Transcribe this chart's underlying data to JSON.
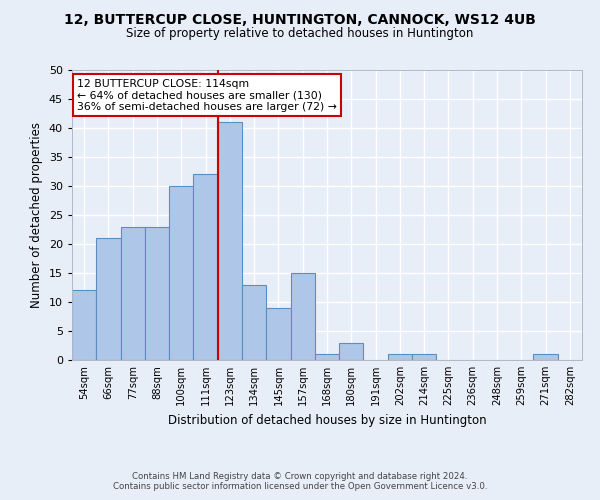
{
  "title1": "12, BUTTERCUP CLOSE, HUNTINGTON, CANNOCK, WS12 4UB",
  "title2": "Size of property relative to detached houses in Huntington",
  "xlabel": "Distribution of detached houses by size in Huntington",
  "ylabel": "Number of detached properties",
  "categories": [
    "54sqm",
    "66sqm",
    "77sqm",
    "88sqm",
    "100sqm",
    "111sqm",
    "123sqm",
    "134sqm",
    "145sqm",
    "157sqm",
    "168sqm",
    "180sqm",
    "191sqm",
    "202sqm",
    "214sqm",
    "225sqm",
    "236sqm",
    "248sqm",
    "259sqm",
    "271sqm",
    "282sqm"
  ],
  "values": [
    12,
    21,
    23,
    23,
    30,
    32,
    41,
    13,
    9,
    15,
    1,
    3,
    0,
    1,
    1,
    0,
    0,
    0,
    0,
    1,
    0
  ],
  "bar_color": "#aec6e8",
  "bar_edge_color": "#5a8fc2",
  "vline_x": 5.5,
  "annotation_line1": "12 BUTTERCUP CLOSE: 114sqm",
  "annotation_line2": "← 64% of detached houses are smaller (130)",
  "annotation_line3": "36% of semi-detached houses are larger (72) →",
  "annotation_box_color": "#ffffff",
  "annotation_box_edge_color": "#cc0000",
  "vline_color": "#cc0000",
  "ylim": [
    0,
    50
  ],
  "yticks": [
    0,
    5,
    10,
    15,
    20,
    25,
    30,
    35,
    40,
    45,
    50
  ],
  "footer1": "Contains HM Land Registry data © Crown copyright and database right 2024.",
  "footer2": "Contains public sector information licensed under the Open Government Licence v3.0.",
  "bg_color": "#e8eef8",
  "grid_color": "#ffffff"
}
